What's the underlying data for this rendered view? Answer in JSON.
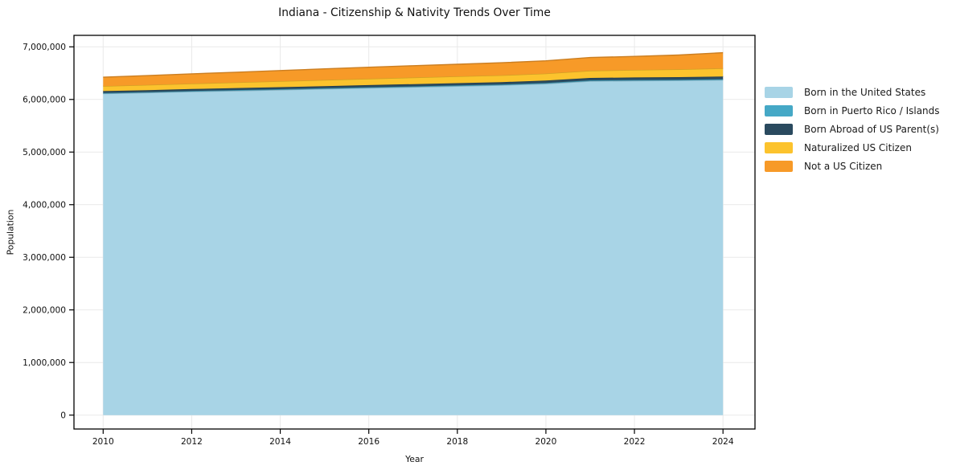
{
  "title": "Indiana - Citizenship & Nativity Trends Over Time",
  "xlabel": "Year",
  "ylabel": "Population",
  "chart_data": {
    "type": "area",
    "stacked": true,
    "title": "Indiana - Citizenship & Nativity Trends Over Time",
    "xlabel": "Year",
    "ylabel": "Population",
    "x": [
      2010,
      2011,
      2012,
      2013,
      2014,
      2015,
      2016,
      2017,
      2018,
      2019,
      2020,
      2021,
      2022,
      2023,
      2024
    ],
    "series": [
      {
        "name": "Born in the United States",
        "color": "#a8d4e6",
        "values": [
          6110000,
          6128000,
          6148000,
          6165000,
          6182000,
          6200000,
          6218000,
          6235000,
          6252000,
          6270000,
          6298000,
          6348000,
          6355000,
          6360000,
          6370000
        ]
      },
      {
        "name": "Born in Puerto Rico / Islands",
        "color": "#45a8c6",
        "values": [
          12000,
          12000,
          13000,
          13000,
          13000,
          14000,
          14000,
          14000,
          15000,
          15000,
          15000,
          15000,
          16000,
          16000,
          16000
        ]
      },
      {
        "name": "Born Abroad of US Parent(s)",
        "color": "#2a4a5f",
        "values": [
          36000,
          37000,
          37000,
          38000,
          39000,
          40000,
          41000,
          42000,
          43000,
          44000,
          45000,
          46000,
          47000,
          48000,
          50000
        ]
      },
      {
        "name": "Naturalized US Citizen",
        "color": "#fcc32d",
        "values": [
          95000,
          99000,
          103000,
          108000,
          113000,
          117000,
          121000,
          125000,
          128000,
          131000,
          134000,
          138000,
          142000,
          148000,
          155000
        ]
      },
      {
        "name": "Not a US Citizen",
        "color": "#f79a28",
        "values": [
          170000,
          178000,
          186000,
          194000,
          202000,
          210000,
          218000,
          225000,
          231000,
          237000,
          243000,
          250000,
          258000,
          272000,
          298000
        ]
      }
    ],
    "xticks": [
      2010,
      2012,
      2014,
      2016,
      2018,
      2020,
      2022,
      2024
    ],
    "yticks": [
      0,
      1000000,
      2000000,
      3000000,
      4000000,
      5000000,
      6000000,
      7000000
    ],
    "ytick_labels": [
      "0",
      "1,000,000",
      "2,000,000",
      "3,000,000",
      "4,000,000",
      "5,000,000",
      "6,000,000",
      "7,000,000"
    ],
    "ylim": [
      0,
      7250000
    ],
    "grid": true,
    "legend_position": "right"
  }
}
